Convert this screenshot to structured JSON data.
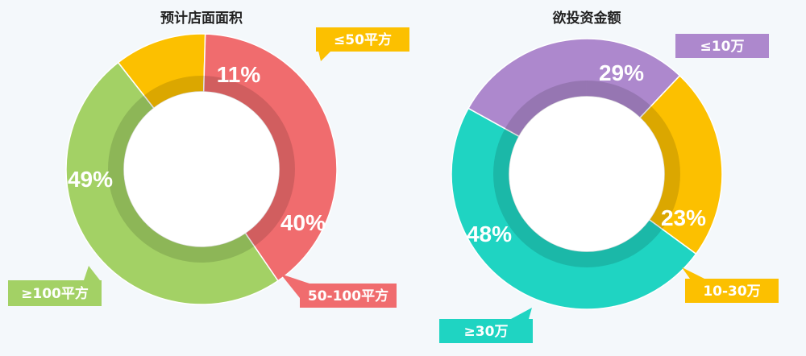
{
  "chart_data": [
    {
      "type": "pie",
      "title": "预计店面面积",
      "slices": [
        {
          "label": "≤50平方",
          "value": 11,
          "value_label": "11%",
          "color": "#fcc000"
        },
        {
          "label": "50-100平方",
          "value": 40,
          "value_label": "40%",
          "color": "#f06c6e"
        },
        {
          "label": "≥100平方",
          "value": 49,
          "value_label": "49%",
          "color": "#a3d165"
        }
      ]
    },
    {
      "type": "pie",
      "title": "欲投资金额",
      "slices": [
        {
          "label": "≤10万",
          "value": 29,
          "value_label": "29%",
          "color": "#ad88cd"
        },
        {
          "label": "10-30万",
          "value": 23,
          "value_label": "23%",
          "color": "#fcc000"
        },
        {
          "label": "≥30万",
          "value": 48,
          "value_label": "48%",
          "color": "#1fd4c2"
        }
      ]
    }
  ]
}
